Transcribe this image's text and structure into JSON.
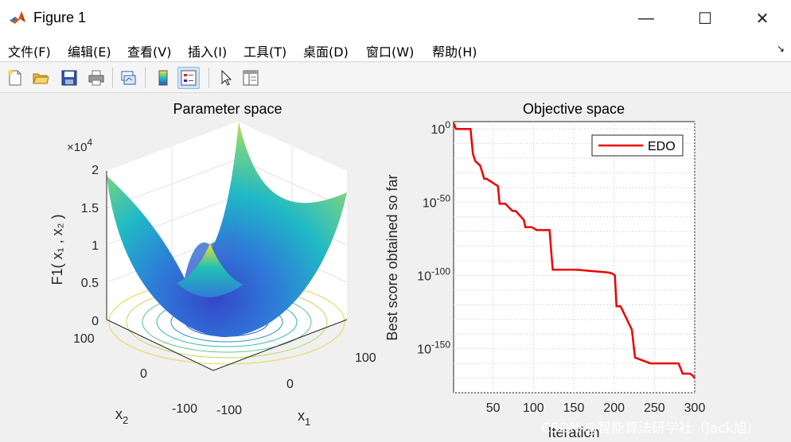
{
  "window": {
    "title": "Figure 1"
  },
  "window_controls": {
    "minimize": "—",
    "maximize": "☐",
    "close": "✕"
  },
  "menu": {
    "items": [
      "文件(F)",
      "编辑(E)",
      "查看(V)",
      "插入(I)",
      "工具(T)",
      "桌面(D)",
      "窗口(W)",
      "帮助(H)"
    ],
    "overflow": "↘"
  },
  "toolbar": {
    "buttons": [
      "new-figure-icon",
      "open-file-icon",
      "save-icon",
      "print-icon",
      "link-plot-icon",
      "colorbar-icon",
      "legend-icon",
      "pointer-icon",
      "property-inspector-icon"
    ]
  },
  "colors": {
    "line": "#ee0000",
    "surface_low": "#3b4cc0",
    "surface_mid": "#22c3b8",
    "surface_high": "#f5e634"
  },
  "chart_data": [
    {
      "type": "surface",
      "title": "Parameter space",
      "xlabel": "x",
      "xlabel_sub": "1",
      "ylabel": "x",
      "ylabel_sub": "2",
      "zlabel": "F1( x₁ , x₂ )",
      "z_exponent": "×10",
      "z_exponent_power": "4",
      "zlim": [
        0,
        2
      ],
      "z_ticks": [
        "2",
        "1.5",
        "1",
        "0.5",
        "0"
      ],
      "x_ticks": [
        "100",
        "0",
        "-100"
      ],
      "y_ticks": [
        "100",
        "0",
        "-100"
      ],
      "x_range": [
        -100,
        100
      ],
      "y_range": [
        -100,
        100
      ],
      "contours_on_base": true
    },
    {
      "type": "line",
      "title": "Objective space",
      "xlabel": "Iteration",
      "ylabel": "Best score obtained so far",
      "yscale": "log",
      "xlim": [
        1,
        300
      ],
      "ylim": [
        1e-180,
        100000.0
      ],
      "x_ticks": [
        "50",
        "100",
        "150",
        "200",
        "250",
        "300"
      ],
      "y_tick_base": "10",
      "y_ticks": [
        "0",
        "-50",
        "-100",
        "-150"
      ],
      "legend": {
        "position": "top-right",
        "entries": [
          "EDO"
        ]
      },
      "grid": true,
      "series": [
        {
          "name": "EDO",
          "x": [
            1,
            4,
            22,
            25,
            28,
            34,
            39,
            42,
            56,
            58,
            65,
            74,
            78,
            88,
            90,
            98,
            104,
            108,
            120,
            122,
            124,
            153,
            194,
            199,
            201,
            203,
            204,
            205,
            208,
            222,
            226,
            245,
            280,
            285,
            294,
            297,
            300
          ],
          "log10_y": [
            4,
            0,
            0,
            -17,
            -22,
            -25,
            -34,
            -34,
            -39,
            -51,
            -51,
            -56,
            -56,
            -62,
            -67,
            -67,
            -69,
            -69,
            -69,
            -83,
            -96,
            -96,
            -98,
            -99,
            -100,
            -121,
            -121,
            -121,
            -121,
            -137,
            -156,
            -160,
            -160,
            -167,
            -167,
            -168,
            -170
          ]
        }
      ]
    }
  ],
  "watermark": "CSDN @智能算法研学社（Jack旭）"
}
